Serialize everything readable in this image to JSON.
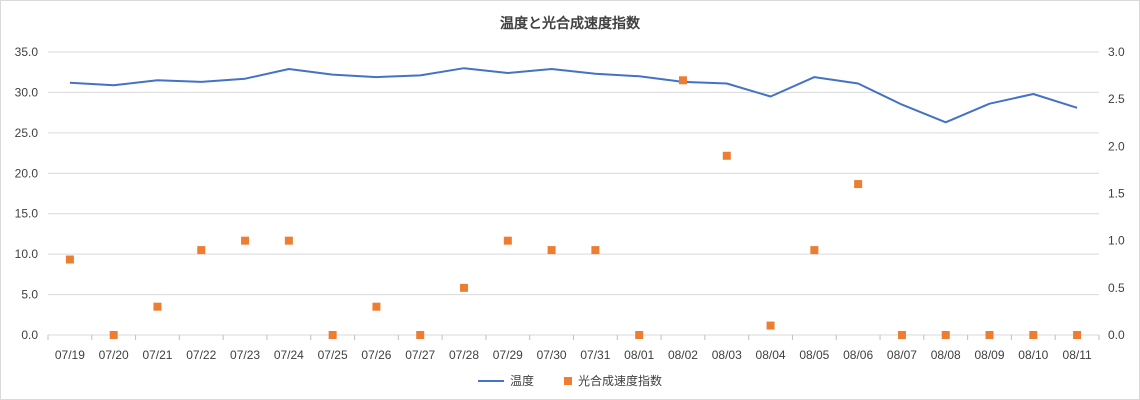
{
  "chart_data": {
    "type": "line",
    "title": "温度と光合成速度指数",
    "categories": [
      "07/19",
      "07/20",
      "07/21",
      "07/22",
      "07/23",
      "07/24",
      "07/25",
      "07/26",
      "07/27",
      "07/28",
      "07/29",
      "07/30",
      "07/31",
      "08/01",
      "08/02",
      "08/03",
      "08/04",
      "08/05",
      "08/06",
      "08/07",
      "08/08",
      "08/09",
      "08/10",
      "08/11"
    ],
    "series": [
      {
        "name": "温度",
        "type": "line",
        "axis": "left",
        "color": "#4472c4",
        "values": [
          31.2,
          30.9,
          31.5,
          31.3,
          31.7,
          32.9,
          32.2,
          31.9,
          32.1,
          33.0,
          32.4,
          32.9,
          32.3,
          32.0,
          31.3,
          31.1,
          29.5,
          31.9,
          31.1,
          28.5,
          26.3,
          28.6,
          29.8,
          28.1
        ]
      },
      {
        "name": "光合成速度指数",
        "type": "scatter",
        "axis": "right",
        "color": "#ed7d31",
        "values": [
          0.8,
          0.0,
          0.3,
          0.9,
          1.0,
          1.0,
          0.0,
          0.3,
          0.0,
          0.5,
          1.0,
          0.9,
          0.9,
          0.0,
          2.7,
          1.9,
          0.1,
          0.9,
          1.6,
          0.0,
          0.0,
          0.0,
          0.0,
          0.0
        ]
      }
    ],
    "y_left": {
      "min": 0,
      "max": 35,
      "step": 5,
      "ticks": [
        "0.0",
        "5.0",
        "10.0",
        "15.0",
        "20.0",
        "25.0",
        "30.0",
        "35.0"
      ]
    },
    "y_right": {
      "min": 0,
      "max": 3,
      "step": 0.5,
      "ticks": [
        "0.0",
        "0.5",
        "1.0",
        "1.5",
        "2.0",
        "2.5",
        "3.0"
      ]
    },
    "grid": true,
    "legend_position": "bottom"
  }
}
